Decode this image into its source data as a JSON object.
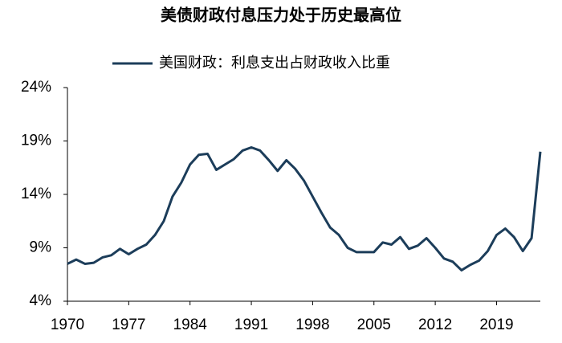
{
  "chart_data": {
    "type": "line",
    "title": "美债财政付息压力处于历史最高位",
    "x": [
      1970,
      1971,
      1972,
      1973,
      1974,
      1975,
      1976,
      1977,
      1978,
      1979,
      1980,
      1981,
      1982,
      1983,
      1984,
      1985,
      1986,
      1987,
      1988,
      1989,
      1990,
      1991,
      1992,
      1993,
      1994,
      1995,
      1996,
      1997,
      1998,
      1999,
      2000,
      2001,
      2002,
      2003,
      2004,
      2005,
      2006,
      2007,
      2008,
      2009,
      2010,
      2011,
      2012,
      2013,
      2014,
      2015,
      2016,
      2017,
      2018,
      2019,
      2020,
      2021,
      2022,
      2023,
      2024
    ],
    "series": [
      {
        "name": "美国财政：利息支出占财政收入比重",
        "color": "#1c3d5a",
        "values": [
          7.5,
          7.9,
          7.5,
          7.6,
          8.1,
          8.3,
          8.9,
          8.4,
          8.9,
          9.3,
          10.2,
          11.5,
          13.8,
          15.1,
          16.8,
          17.7,
          17.8,
          16.3,
          16.8,
          17.3,
          18.1,
          18.4,
          18.1,
          17.2,
          16.2,
          17.2,
          16.4,
          15.3,
          13.8,
          12.3,
          10.9,
          10.2,
          9.0,
          8.6,
          8.6,
          8.6,
          9.5,
          9.3,
          10.0,
          8.9,
          9.2,
          9.9,
          9.0,
          8.0,
          7.7,
          6.9,
          7.4,
          7.8,
          8.7,
          10.2,
          10.8,
          10.0,
          8.7,
          9.9,
          18.0
        ]
      }
    ],
    "xlim": [
      1970,
      2024
    ],
    "xticks": [
      1970,
      1977,
      1984,
      1991,
      1998,
      2005,
      2012,
      2019
    ],
    "ylim": [
      4,
      24
    ],
    "yticks": [
      {
        "value": 4,
        "label": "4%"
      },
      {
        "value": 9,
        "label": "9%"
      },
      {
        "value": 14,
        "label": "14%"
      },
      {
        "value": 19,
        "label": "19%"
      },
      {
        "value": 24,
        "label": "24%"
      }
    ],
    "grid": false
  }
}
